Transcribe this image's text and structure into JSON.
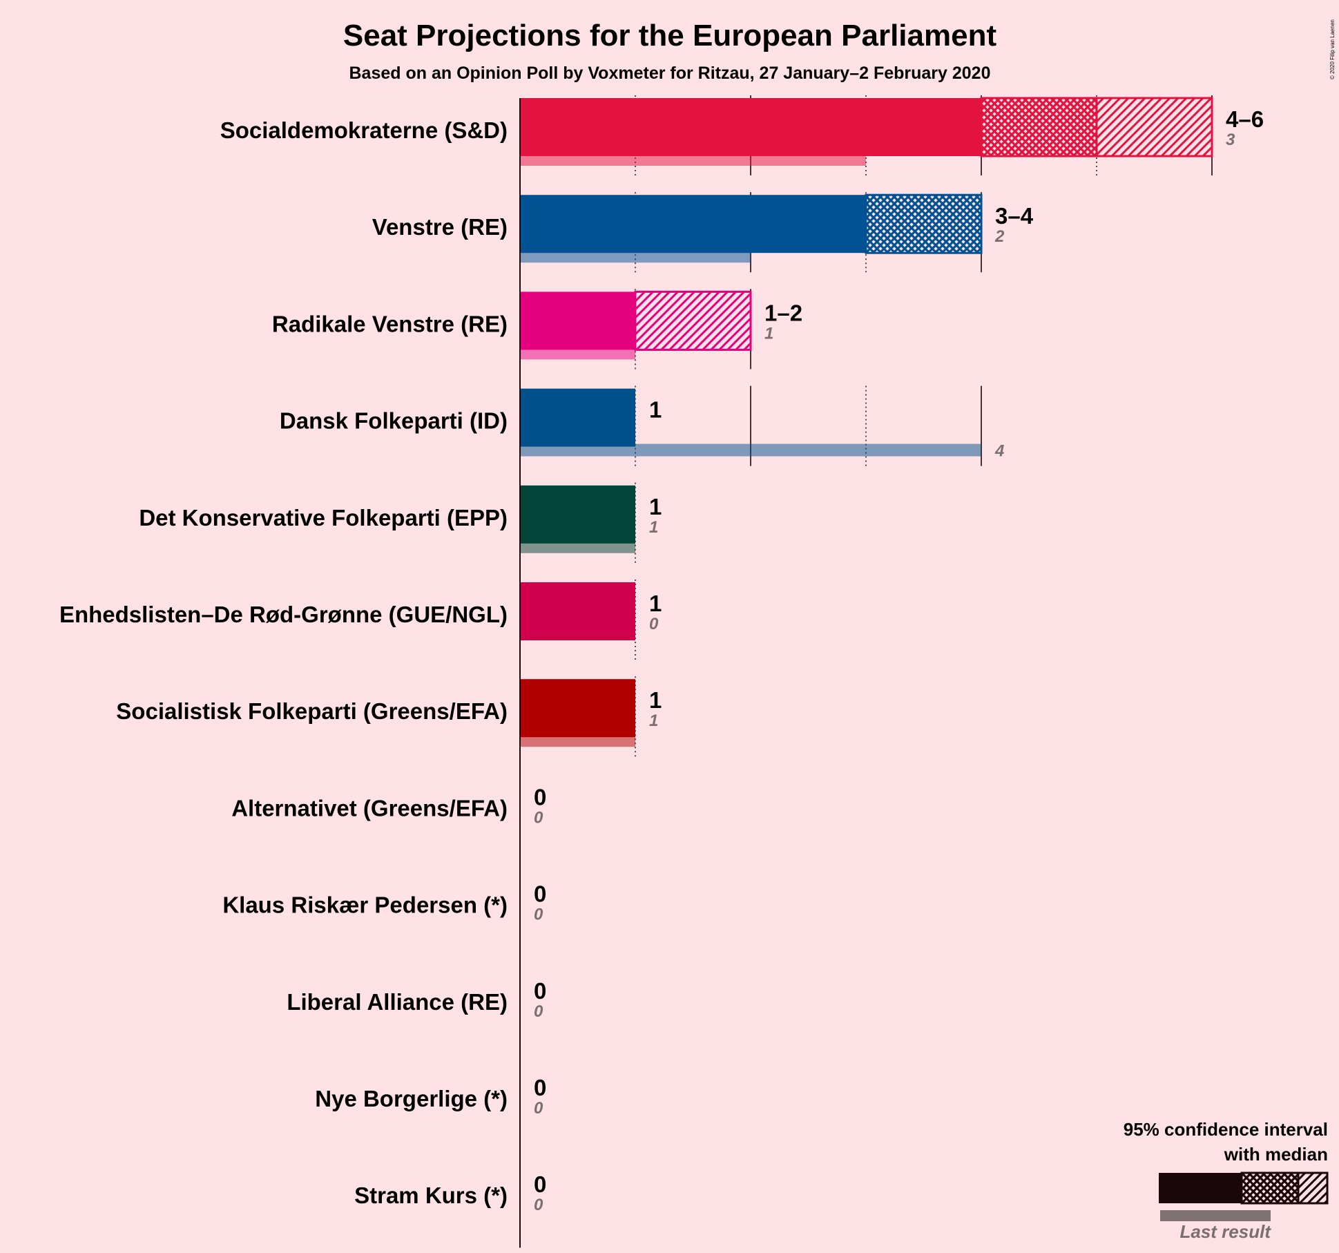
{
  "chart_data": {
    "type": "bar",
    "title": "Seat Projections for the European Parliament",
    "subtitle": "Based on an Opinion Poll by Voxmeter for Ritzau, 27 January–2 February 2020",
    "copyright": "© 2020 Filip van Laenen",
    "xlim": [
      0,
      6
    ],
    "categories": [
      "Socialdemokraterne (S&D)",
      "Venstre (RE)",
      "Radikale Venstre (RE)",
      "Dansk Folkeparti (ID)",
      "Det Konservative Folkeparti (EPP)",
      "Enhedslisten–De Rød-Grønne (GUE/NGL)",
      "Socialistisk Folkeparti (Greens/EFA)",
      "Alternativet (Greens/EFA)",
      "Klaus Riskær Pedersen (*)",
      "Liberal Alliance (RE)",
      "Nye Borgerlige (*)",
      "Stram Kurs (*)"
    ],
    "series": [
      {
        "name": "95% confidence interval with median",
        "rows": [
          {
            "party": "Socialdemokraterne (S&D)",
            "low": 4,
            "median": 5,
            "high": 6,
            "label": "4–6",
            "color": "#E3123E"
          },
          {
            "party": "Venstre (RE)",
            "low": 3,
            "median": 4,
            "high": 4,
            "label": "3–4",
            "color": "#005293"
          },
          {
            "party": "Radikale Venstre (RE)",
            "low": 1,
            "median": 1,
            "high": 2,
            "label": "1–2",
            "color": "#E5007D"
          },
          {
            "party": "Dansk Folkeparti (ID)",
            "low": 1,
            "median": 1,
            "high": 1,
            "label": "1",
            "color": "#00508B"
          },
          {
            "party": "Det Konservative Folkeparti (EPP)",
            "low": 1,
            "median": 1,
            "high": 1,
            "label": "1",
            "color": "#024538"
          },
          {
            "party": "Enhedslisten–De Rød-Grønne (GUE/NGL)",
            "low": 1,
            "median": 1,
            "high": 1,
            "label": "1",
            "color": "#D0004D"
          },
          {
            "party": "Socialistisk Folkeparti (Greens/EFA)",
            "low": 1,
            "median": 1,
            "high": 1,
            "label": "1",
            "color": "#B10000"
          },
          {
            "party": "Alternativet (Greens/EFA)",
            "low": 0,
            "median": 0,
            "high": 0,
            "label": "0",
            "color": "#2B8738"
          },
          {
            "party": "Klaus Riskær Pedersen (*)",
            "low": 0,
            "median": 0,
            "high": 0,
            "label": "0",
            "color": "#777777"
          },
          {
            "party": "Liberal Alliance (RE)",
            "low": 0,
            "median": 0,
            "high": 0,
            "label": "0",
            "color": "#21BACC"
          },
          {
            "party": "Nye Borgerlige (*)",
            "low": 0,
            "median": 0,
            "high": 0,
            "label": "0",
            "color": "#054A5B"
          },
          {
            "party": "Stram Kurs (*)",
            "low": 0,
            "median": 0,
            "high": 0,
            "label": "0",
            "color": "#777777"
          }
        ]
      },
      {
        "name": "Last result",
        "values": [
          3,
          2,
          1,
          4,
          1,
          0,
          1,
          0,
          0,
          0,
          0,
          0
        ]
      }
    ],
    "legend": {
      "title_line1": "95% confidence interval",
      "title_line2": "with median",
      "last_result": "Last result",
      "placement": "bottom-right"
    }
  }
}
